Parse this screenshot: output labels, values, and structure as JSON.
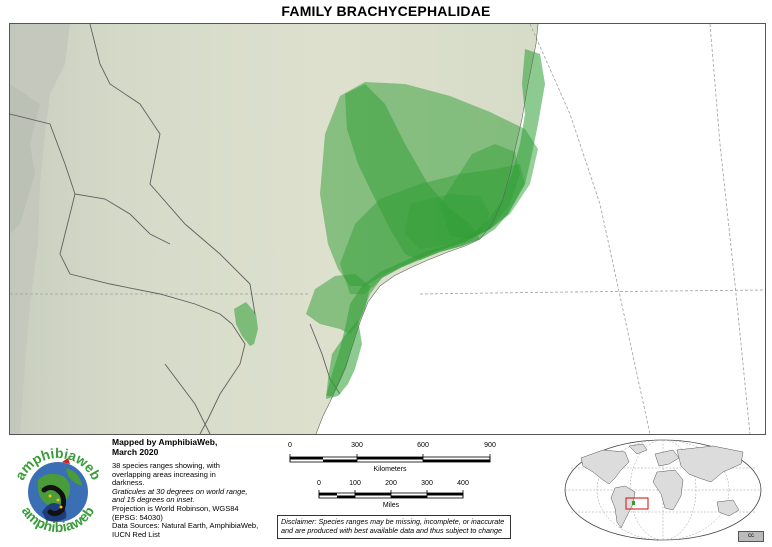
{
  "title": "FAMILY BRACHYCEPHALIDAE",
  "credits": {
    "heading_line1": "Mapped by AmphibiaWeb,",
    "heading_line2": "March 2020",
    "summary_line1": "38 species ranges showing, with",
    "summary_line2": "overlapping areas increasing in",
    "summary_line3": "darkness.",
    "graticule_line1": "Graticules at 30 degrees on world range,",
    "graticule_line2": "and 15 degrees on inset.",
    "projection_line1": "Projection is World Robinson, WGS84",
    "projection_line2": "(EPSG: 54030)",
    "sources_line1": "Data Sources: Natural Earth, AmphibiaWeb,",
    "sources_line2": "IUCN Red List"
  },
  "scale_km": {
    "ticks": [
      "0",
      "300",
      "600",
      "900"
    ],
    "unit": "Kilometers"
  },
  "scale_miles": {
    "ticks": [
      "0",
      "100",
      "200",
      "300",
      "400"
    ],
    "unit": "Miles"
  },
  "disclaimer": {
    "line1": "Disclaimer: Species ranges may be missing, incomplete, or inaccurate",
    "line2": "and are produced with best available data and thus subject to change"
  },
  "logo": {
    "text": "amphibiaweb"
  },
  "cc_badge": "cc",
  "colors": {
    "range_fill": "#2f9e34",
    "land": "#d7dccb",
    "ocean": "#ffffff",
    "inset_box": "#d32020"
  }
}
